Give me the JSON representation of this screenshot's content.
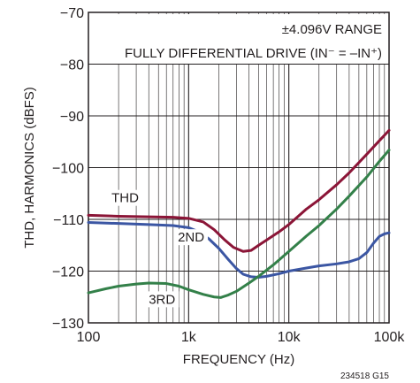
{
  "chart_data": {
    "type": "line",
    "title": "",
    "xlabel": "FREQUENCY (Hz)",
    "ylabel": "THD, HARMONICS (dBFS)",
    "x_scale": "log",
    "xlim": [
      100,
      100000
    ],
    "ylim": [
      -130,
      -70
    ],
    "x_ticks": [
      100,
      1000,
      10000,
      100000
    ],
    "x_tick_labels": [
      "100",
      "1k",
      "10k",
      "100k"
    ],
    "y_ticks": [
      -70,
      -80,
      -90,
      -100,
      -110,
      -120,
      -130
    ],
    "y_tick_labels": [
      "−70",
      "−80",
      "−90",
      "−100",
      "−110",
      "−120",
      "−130"
    ],
    "grid": true,
    "annotations": [
      "±4.096V RANGE",
      "FULLY DIFFERENTIAL DRIVE (IN⁻ = –IN⁺)"
    ],
    "figure_code": "234518 G15",
    "series": [
      {
        "name": "THD",
        "color": "#8b1537",
        "label_pos": [
          170,
          -106.7
        ],
        "points": [
          [
            100,
            -109.2
          ],
          [
            200,
            -109.4
          ],
          [
            400,
            -109.5
          ],
          [
            700,
            -109.6
          ],
          [
            1000,
            -109.8
          ],
          [
            1400,
            -110.5
          ],
          [
            1800,
            -112.0
          ],
          [
            2300,
            -114.0
          ],
          [
            2800,
            -115.4
          ],
          [
            3500,
            -116.2
          ],
          [
            4200,
            -116.0
          ],
          [
            5000,
            -115.0
          ],
          [
            6000,
            -114.0
          ],
          [
            8000,
            -112.4
          ],
          [
            10000,
            -111.0
          ],
          [
            15000,
            -108.0
          ],
          [
            20000,
            -106.2
          ],
          [
            30000,
            -103.3
          ],
          [
            40000,
            -101.0
          ],
          [
            60000,
            -97.4
          ],
          [
            80000,
            -94.8
          ],
          [
            100000,
            -92.8
          ]
        ]
      },
      {
        "name": "2ND",
        "color": "#3b56a3",
        "label_pos": [
          780,
          -114.3
        ],
        "points": [
          [
            100,
            -110.6
          ],
          [
            200,
            -110.8
          ],
          [
            400,
            -111.0
          ],
          [
            700,
            -111.2
          ],
          [
            1000,
            -111.6
          ],
          [
            1300,
            -112.5
          ],
          [
            1600,
            -113.8
          ],
          [
            2000,
            -115.6
          ],
          [
            2500,
            -117.8
          ],
          [
            3000,
            -119.5
          ],
          [
            3500,
            -120.6
          ],
          [
            4200,
            -121.1
          ],
          [
            5000,
            -121.2
          ],
          [
            6000,
            -121.0
          ],
          [
            8000,
            -120.5
          ],
          [
            10000,
            -120.0
          ],
          [
            15000,
            -119.4
          ],
          [
            20000,
            -119.0
          ],
          [
            30000,
            -118.6
          ],
          [
            40000,
            -118.2
          ],
          [
            50000,
            -117.6
          ],
          [
            60000,
            -116.4
          ],
          [
            70000,
            -114.6
          ],
          [
            80000,
            -113.3
          ],
          [
            90000,
            -112.8
          ],
          [
            100000,
            -112.6
          ]
        ]
      },
      {
        "name": "3RD",
        "color": "#338049",
        "label_pos": [
          400,
          -126.3
        ],
        "points": [
          [
            100,
            -124.2
          ],
          [
            150,
            -123.4
          ],
          [
            200,
            -122.9
          ],
          [
            300,
            -122.5
          ],
          [
            400,
            -122.3
          ],
          [
            600,
            -122.4
          ],
          [
            800,
            -122.9
          ],
          [
            1000,
            -123.6
          ],
          [
            1400,
            -124.5
          ],
          [
            1800,
            -125.0
          ],
          [
            2100,
            -125.1
          ],
          [
            2500,
            -124.6
          ],
          [
            3000,
            -123.9
          ],
          [
            4000,
            -122.3
          ],
          [
            5000,
            -121.0
          ],
          [
            7000,
            -118.8
          ],
          [
            10000,
            -116.2
          ],
          [
            15000,
            -113.2
          ],
          [
            20000,
            -111.2
          ],
          [
            30000,
            -108.0
          ],
          [
            40000,
            -105.5
          ],
          [
            60000,
            -101.8
          ],
          [
            80000,
            -98.8
          ],
          [
            100000,
            -96.6
          ]
        ]
      }
    ]
  }
}
